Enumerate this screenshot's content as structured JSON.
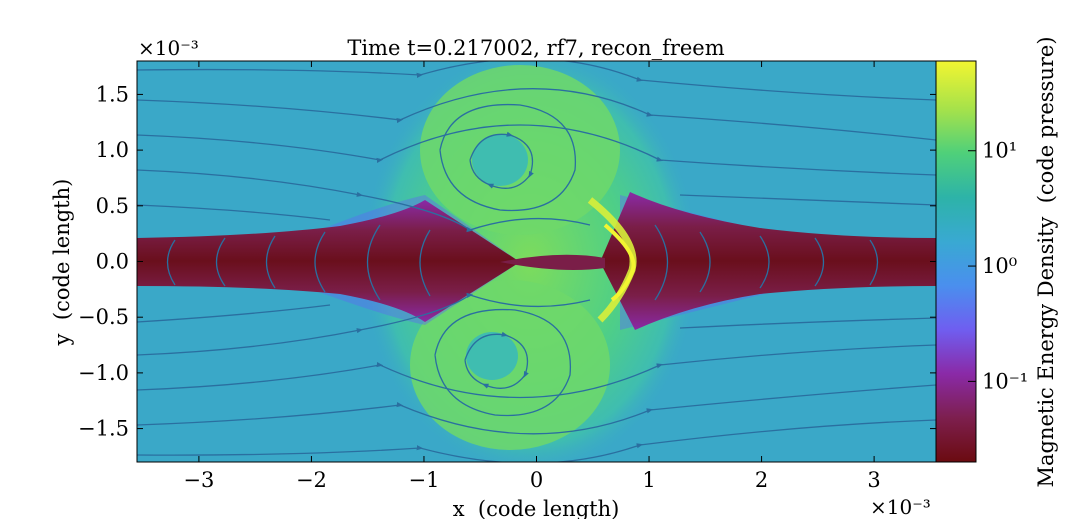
{
  "chart_data": {
    "type": "heatmap",
    "title": "Time t=0.217002, rf7, recon_freem",
    "xlabel": "x  (code length)",
    "ylabel": "y  (code length)",
    "x_multiplier": "×10⁻³",
    "y_multiplier": "×10⁻³",
    "xlim": [
      -3.55,
      3.55
    ],
    "ylim": [
      -1.8,
      1.8
    ],
    "x_ticks": [
      -3,
      -2,
      -1,
      0,
      1,
      2,
      3
    ],
    "x_tick_labels": [
      "−3",
      "−2",
      "−1",
      "0",
      "1",
      "2",
      "3"
    ],
    "y_ticks": [
      -1.5,
      -1.0,
      -0.5,
      0.0,
      0.5,
      1.0,
      1.5
    ],
    "y_tick_labels": [
      "−1.5",
      "−1.0",
      "−0.5",
      "0.0",
      "0.5",
      "1.0",
      "1.5"
    ],
    "colorbar": {
      "label": "Magnetic Energy Density  (code pressure)",
      "scale": "log",
      "range": [
        0.02,
        60
      ],
      "ticks": [
        0.1,
        1,
        10
      ],
      "tick_labels": [
        "10⁻¹",
        "10⁰",
        "10¹"
      ],
      "colormap": [
        "#6b0b10",
        "#7d1f4e",
        "#8a2aa7",
        "#6f5ef0",
        "#4a8fee",
        "#39a9d2",
        "#2db3a8",
        "#4fd07a",
        "#a6e24a",
        "#f2f531"
      ]
    },
    "features": {
      "background": "#3aa8c8",
      "current_sheet": "#6e1126",
      "island_region": "#62d17e",
      "streamline_color": "#2a6fa0"
    }
  }
}
